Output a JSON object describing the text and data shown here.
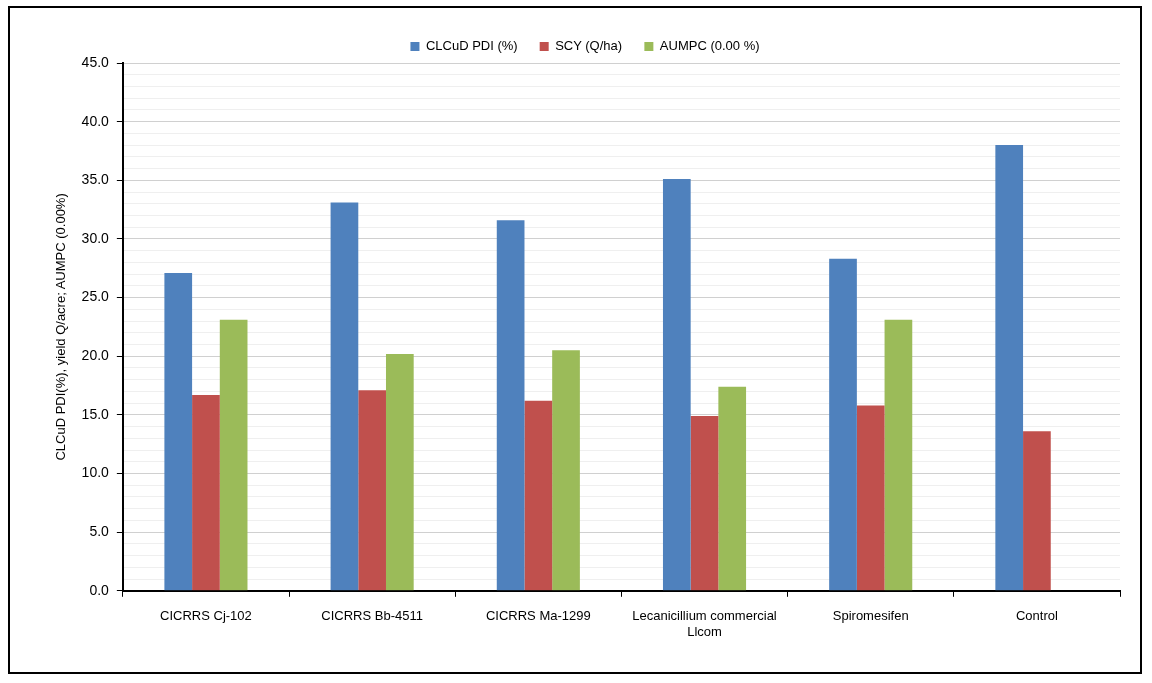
{
  "chart_data": {
    "type": "bar",
    "ylabel": "CLCuD PDI(%), yield Q/acre; AUMPC (0.00%)",
    "categories": [
      "CICRRS Cj-102",
      "CICRRS Bb-4511",
      "CICRRS Ma-1299",
      "Lecanicillium commercial Llcom",
      "Spiromesifen",
      "Control"
    ],
    "series": [
      {
        "name": "CLCuD PDI (%)",
        "color": "#4f81bd",
        "values": [
          27.1,
          33.1,
          31.6,
          35.1,
          28.3,
          38.0
        ]
      },
      {
        "name": "SCY (Q/ha)",
        "color": "#c0504d",
        "values": [
          16.7,
          17.1,
          16.2,
          14.9,
          15.8,
          13.6
        ]
      },
      {
        "name": "AUMPC (0.00 %)",
        "color": "#9bbb59",
        "values": [
          23.1,
          20.2,
          20.5,
          17.4,
          23.1,
          null
        ]
      }
    ],
    "ylim": [
      0,
      45
    ],
    "yticks": [
      {
        "value": 0,
        "label": "0.0"
      },
      {
        "value": 1,
        "label": null
      },
      {
        "value": 2,
        "label": null
      },
      {
        "value": 3,
        "label": null
      },
      {
        "value": 4,
        "label": null
      },
      {
        "value": 5,
        "label": "5.0"
      },
      {
        "value": 6,
        "label": null
      },
      {
        "value": 7,
        "label": null
      },
      {
        "value": 8,
        "label": null
      },
      {
        "value": 9,
        "label": null
      },
      {
        "value": 10,
        "label": "10.0"
      },
      {
        "value": 11,
        "label": null
      },
      {
        "value": 12,
        "label": null
      },
      {
        "value": 13,
        "label": null
      },
      {
        "value": 14,
        "label": null
      },
      {
        "value": 15,
        "label": "15.0"
      },
      {
        "value": 16,
        "label": null
      },
      {
        "value": 17,
        "label": null
      },
      {
        "value": 18,
        "label": null
      },
      {
        "value": 19,
        "label": null
      },
      {
        "value": 20,
        "label": "20.0"
      },
      {
        "value": 21,
        "label": null
      },
      {
        "value": 22,
        "label": null
      },
      {
        "value": 23,
        "label": null
      },
      {
        "value": 24,
        "label": null
      },
      {
        "value": 25,
        "label": "25.0"
      },
      {
        "value": 26,
        "label": null
      },
      {
        "value": 27,
        "label": null
      },
      {
        "value": 28,
        "label": null
      },
      {
        "value": 29,
        "label": null
      },
      {
        "value": 30,
        "label": "30.0"
      },
      {
        "value": 31,
        "label": null
      },
      {
        "value": 32,
        "label": null
      },
      {
        "value": 33,
        "label": null
      },
      {
        "value": 34,
        "label": null
      },
      {
        "value": 35,
        "label": "35.0"
      },
      {
        "value": 36,
        "label": null
      },
      {
        "value": 37,
        "label": null
      },
      {
        "value": 38,
        "label": null
      },
      {
        "value": 39,
        "label": null
      },
      {
        "value": 40,
        "label": "40.0"
      },
      {
        "value": 41,
        "label": null
      },
      {
        "value": 42,
        "label": null
      },
      {
        "value": 43,
        "label": null
      },
      {
        "value": 44,
        "label": null
      },
      {
        "value": 45,
        "label": "45.0"
      }
    ],
    "grid": "y",
    "legend": "top"
  }
}
